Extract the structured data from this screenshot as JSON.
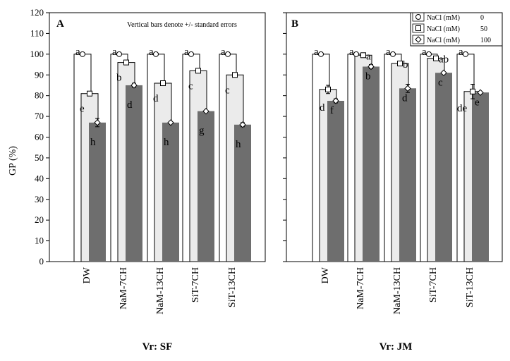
{
  "chart_data": [
    {
      "type": "bar",
      "panel": "A",
      "note": "Vertical bars denote +/- standard errors",
      "xlabel": "Vr: SF",
      "ylabel": "GP (%)",
      "ylim": [
        0,
        120
      ],
      "yticks": [
        0,
        10,
        20,
        30,
        40,
        50,
        60,
        70,
        80,
        90,
        100,
        110,
        120
      ],
      "categories": [
        "DW",
        "NaM-7CH",
        "NaM-13CH",
        "SiT-7CH",
        "SiT-13CH"
      ],
      "series": [
        {
          "name": "NaCl (mM)   0",
          "values": [
            100,
            100,
            100,
            100,
            100
          ],
          "errors": [
            0,
            0,
            0,
            0,
            0
          ],
          "letters": [
            "a",
            "a",
            "a",
            "a",
            "a"
          ]
        },
        {
          "name": "NaCl (mM)   50",
          "values": [
            81,
            96,
            86,
            92,
            90
          ],
          "errors": [
            1,
            1,
            0.5,
            1,
            0.5
          ],
          "letters": [
            "e",
            "b",
            "d",
            "c",
            "c"
          ]
        },
        {
          "name": "NaCl (mM)   100",
          "values": [
            67,
            85,
            67,
            72.5,
            66
          ],
          "errors": [
            2,
            1,
            0.5,
            0.5,
            1
          ],
          "letters": [
            "h",
            "d",
            "h",
            "g",
            "h"
          ]
        }
      ]
    },
    {
      "type": "bar",
      "panel": "B",
      "xlabel": "Vr: JM",
      "ylim": [
        0,
        120
      ],
      "categories": [
        "DW",
        "NaM-7CH",
        "NaM-13CH",
        "SiT-7CH",
        "SiT-13CH"
      ],
      "series": [
        {
          "name": "NaCl (mM)   0",
          "values": [
            100,
            100,
            100,
            100,
            100
          ],
          "errors": [
            0,
            0,
            0,
            0,
            0
          ],
          "letters": [
            "a",
            "a",
            "a",
            "a",
            "a"
          ]
        },
        {
          "name": "NaCl (mM)   50",
          "values": [
            83,
            99.5,
            95.5,
            98,
            82
          ],
          "errors": [
            2,
            0.5,
            1,
            0.5,
            3.5
          ],
          "letters": [
            "d",
            "a",
            "b",
            "ab",
            "de"
          ]
        },
        {
          "name": "NaCl (mM)   100",
          "values": [
            77.5,
            94,
            83.5,
            91,
            81.5
          ],
          "errors": [
            1,
            1,
            2,
            0.5,
            0.5
          ],
          "letters": [
            "f",
            "b",
            "d",
            "c",
            "e"
          ]
        }
      ]
    }
  ],
  "legend": [
    {
      "label": "NaCl (mM)",
      "value": "0",
      "marker": "circle"
    },
    {
      "label": "NaCl (mM)",
      "value": "50",
      "marker": "square"
    },
    {
      "label": "NaCl (mM)",
      "value": "100",
      "marker": "diamond"
    }
  ],
  "colors": {
    "bar0": "#ffffff",
    "bar50": "#f0f0f0",
    "bar100": "#6e6e6e",
    "axis": "#000000"
  }
}
